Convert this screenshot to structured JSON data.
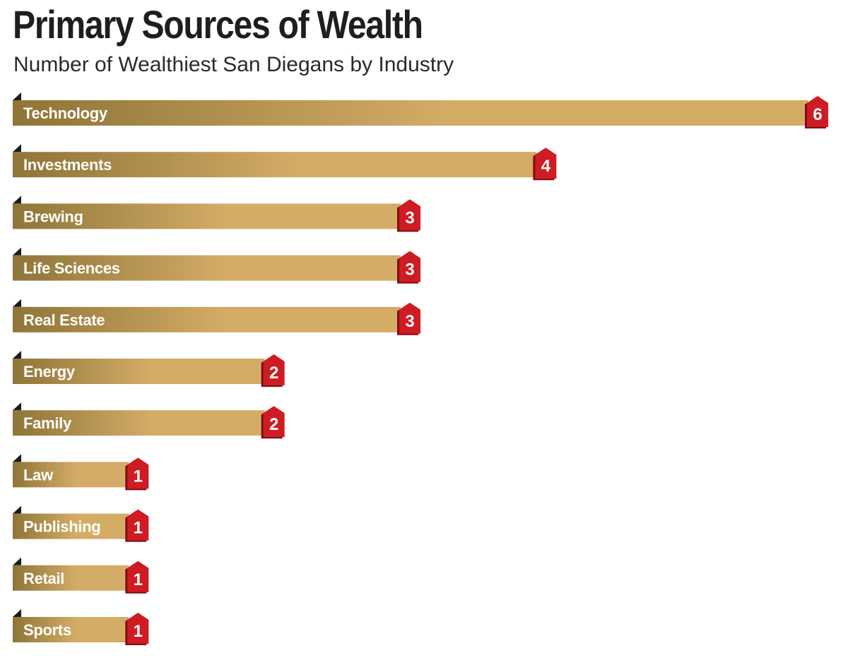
{
  "chart_data": {
    "type": "bar",
    "orientation": "horizontal",
    "title": "Primary Sources of Wealth",
    "subtitle": "Number of Wealthiest San Diegans by Industry",
    "xlabel": "",
    "ylabel": "",
    "categories": [
      "Technology",
      "Investments",
      "Brewing",
      "Life Sciences",
      "Real Estate",
      "Energy",
      "Family",
      "Law",
      "Publishing",
      "Retail",
      "Sports"
    ],
    "values": [
      6,
      4,
      3,
      3,
      3,
      2,
      2,
      1,
      1,
      1,
      1
    ],
    "xlim": [
      0,
      6
    ],
    "grid": false,
    "legend": "none"
  },
  "colors": {
    "bar_dark": "#8f7538",
    "bar_light": "#d4ac66",
    "badge": "#cf1b24",
    "badge_shadow": "#7d0e14",
    "tab": "#1c1c1c",
    "title": "#1e1e1e"
  }
}
